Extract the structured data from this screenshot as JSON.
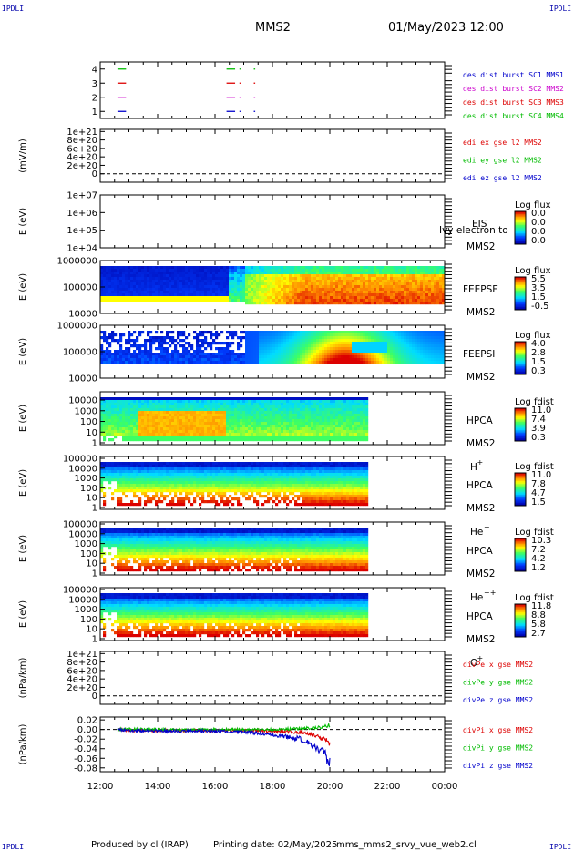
{
  "header": {
    "corner_tl": "IPDLI",
    "corner_tr": "IPDLI",
    "corner_bl": "IPDLI",
    "corner_br": "IPDLI",
    "spacecraft": "MMS2",
    "datetime": "01/May/2023 12:00"
  },
  "footer": {
    "produced_by": "Produced by cl (IRAP)",
    "printing_date": "Printing date: 02/May/2025",
    "filename": "mms_mms2_srvy_vue_web2.cl"
  },
  "x_axis": {
    "ticks": [
      "12:00",
      "14:00",
      "16:00",
      "18:00",
      "20:00",
      "22:00",
      "00:00"
    ],
    "range_hours": [
      12,
      24
    ]
  },
  "colors": {
    "mms1": "#0000cc",
    "mms2": "#cc00cc",
    "mms3": "#dd0000",
    "mms4": "#00bb00",
    "x": "#dd0000",
    "y": "#00bb00",
    "z": "#0000cc"
  },
  "chart_data": [
    {
      "id": "burst",
      "type": "scatter",
      "ylabel": "",
      "yticks": [
        "1",
        "2",
        "3",
        "4"
      ],
      "ylim": [
        0.5,
        4.5
      ],
      "legend": [
        {
          "text": "des dist burst SC1 MMS1",
          "color": "#0000cc"
        },
        {
          "text": "des dist burst SC2 MMS2",
          "color": "#cc00cc"
        },
        {
          "text": "des dist burst SC3 MMS3",
          "color": "#dd0000"
        },
        {
          "text": "des dist burst SC4 MMS4",
          "color": "#00bb00"
        }
      ],
      "series": [
        {
          "sc": 1,
          "color": "#0000cc",
          "segments": [
            [
              12.6,
              12.9
            ],
            [
              16.4,
              16.7
            ],
            [
              16.85,
              16.9
            ],
            [
              17.35,
              17.4
            ]
          ]
        },
        {
          "sc": 2,
          "color": "#cc00cc",
          "segments": [
            [
              12.6,
              12.9
            ],
            [
              16.4,
              16.7
            ],
            [
              16.85,
              16.9
            ],
            [
              17.35,
              17.4
            ]
          ]
        },
        {
          "sc": 3,
          "color": "#dd0000",
          "segments": [
            [
              12.6,
              12.9
            ],
            [
              16.4,
              16.7
            ],
            [
              16.85,
              16.9
            ],
            [
              17.35,
              17.4
            ]
          ]
        },
        {
          "sc": 4,
          "color": "#00bb00",
          "segments": [
            [
              12.6,
              12.9
            ],
            [
              16.4,
              16.7
            ],
            [
              16.85,
              16.9
            ],
            [
              17.35,
              17.4
            ]
          ]
        }
      ]
    },
    {
      "id": "edi",
      "type": "line",
      "ylabel": "(mV/m)",
      "yticks": [
        "0",
        "2e+20",
        "4e+20",
        "6e+20",
        "8e+20",
        "1e+21"
      ],
      "ylim": [
        -0.2,
        1.05
      ],
      "legend": [
        {
          "text": "edi ex gse l2 MMS2",
          "color": "#dd0000"
        },
        {
          "text": "edi ey gse l2 MMS2",
          "color": "#00bb00"
        },
        {
          "text": "edi ez gse l2 MMS2",
          "color": "#0000cc"
        }
      ]
    },
    {
      "id": "eis",
      "type": "heatmap",
      "ylabel": "E (eV)",
      "yticks": [
        "1e+04",
        "1e+05",
        "1e+06",
        "1e+07"
      ],
      "label1": "EIS",
      "label2": "MMS2",
      "overlay": "Ivy electron to",
      "colorbar_title": "Log flux",
      "colorbar_ticks": [
        "0.0",
        "0.0",
        "0.0",
        "0.0"
      ],
      "empty": true
    },
    {
      "id": "feepse",
      "type": "heatmap",
      "ylabel": "E (eV)",
      "yticks": [
        "10000",
        "100000",
        "1000000"
      ],
      "label1": "FEEPSE",
      "label2": "MMS2",
      "colorbar_title": "Log flux",
      "colorbar_ticks": [
        "5.5",
        "3.5",
        "1.5",
        "-0.5"
      ]
    },
    {
      "id": "feepsi",
      "type": "heatmap",
      "ylabel": "E (eV)",
      "yticks": [
        "10000",
        "100000",
        "1000000"
      ],
      "label1": "FEEPSI",
      "label2": "MMS2",
      "colorbar_title": "Log flux",
      "colorbar_ticks": [
        "4.0",
        "2.8",
        "1.5",
        "0.3"
      ]
    },
    {
      "id": "hpca_h",
      "type": "heatmap",
      "ylabel": "E (eV)",
      "yticks": [
        "1",
        "10",
        "100",
        "1000",
        "10000"
      ],
      "label1": "HPCA",
      "label2": "MMS2",
      "species": "H",
      "charge": "+",
      "colorbar_title": "Log fdist",
      "colorbar_ticks": [
        "11.0",
        "7.4",
        "3.9",
        "0.3"
      ]
    },
    {
      "id": "hpca_he",
      "type": "heatmap",
      "ylabel": "E (eV)",
      "yticks": [
        "1",
        "10",
        "100",
        "1000",
        "10000",
        "100000"
      ],
      "label1": "HPCA",
      "label2": "MMS2",
      "species": "He",
      "charge": "+",
      "colorbar_title": "Log fdist",
      "colorbar_ticks": [
        "11.0",
        "7.8",
        "4.7",
        "1.5"
      ]
    },
    {
      "id": "hpca_he2",
      "type": "heatmap",
      "ylabel": "E (eV)",
      "yticks": [
        "1",
        "10",
        "100",
        "1000",
        "10000",
        "100000"
      ],
      "label1": "HPCA",
      "label2": "MMS2",
      "species": "He",
      "charge": "++",
      "colorbar_title": "Log fdist",
      "colorbar_ticks": [
        "10.3",
        "7.2",
        "4.2",
        "1.2"
      ]
    },
    {
      "id": "hpca_o",
      "type": "heatmap",
      "ylabel": "E (eV)",
      "yticks": [
        "1",
        "10",
        "100",
        "1000",
        "10000",
        "100000"
      ],
      "label1": "HPCA",
      "label2": "MMS2",
      "species": "O",
      "charge": "+",
      "colorbar_title": "Log fdist",
      "colorbar_ticks": [
        "11.8",
        "8.8",
        "5.8",
        "2.7"
      ]
    },
    {
      "id": "divpe",
      "type": "line",
      "ylabel": "(nPa/km)",
      "yticks": [
        "0",
        "2e+20",
        "4e+20",
        "6e+20",
        "8e+20",
        "1e+21"
      ],
      "ylim": [
        -0.2,
        1.05
      ],
      "legend": [
        {
          "text": "divPe x gse MMS2",
          "color": "#dd0000"
        },
        {
          "text": "divPe y gse MMS2",
          "color": "#00bb00"
        },
        {
          "text": "divPe z gse MMS2",
          "color": "#0000cc"
        }
      ]
    },
    {
      "id": "divpi",
      "type": "line",
      "ylabel": "(nPa/km)",
      "yticks": [
        "-0.08",
        "-0.06",
        "-0.04",
        "-0.02",
        "0.00",
        "0.02"
      ],
      "ylim": [
        -0.088,
        0.026
      ],
      "legend": [
        {
          "text": "divPi x gse MMS2",
          "color": "#dd0000"
        },
        {
          "text": "divPi y gse MMS2",
          "color": "#00bb00"
        },
        {
          "text": "divPi z gse MMS2",
          "color": "#0000cc"
        }
      ],
      "series": [
        {
          "name": "x",
          "color": "#dd0000",
          "x": [
            12.6,
            13,
            14,
            15,
            16,
            17,
            18,
            19,
            19.5,
            19.8,
            20.0
          ],
          "y": [
            0,
            -0.002,
            -0.002,
            -0.002,
            -0.002,
            -0.002,
            -0.003,
            -0.006,
            -0.012,
            -0.02,
            -0.028
          ]
        },
        {
          "name": "y",
          "color": "#00bb00",
          "x": [
            12.6,
            13,
            14,
            15,
            16,
            17,
            18,
            19,
            19.5,
            19.8,
            20.0
          ],
          "y": [
            0,
            0.001,
            0.0,
            -0.001,
            0.0,
            0.0,
            0.0,
            0.002,
            0.004,
            0.006,
            0.009
          ]
        },
        {
          "name": "z",
          "color": "#0000cc",
          "x": [
            12.6,
            13,
            14,
            15,
            16,
            17,
            18,
            19,
            19.5,
            19.8,
            20.0
          ],
          "y": [
            0,
            -0.002,
            -0.003,
            -0.003,
            -0.003,
            -0.005,
            -0.01,
            -0.02,
            -0.035,
            -0.05,
            -0.07
          ]
        }
      ]
    }
  ]
}
